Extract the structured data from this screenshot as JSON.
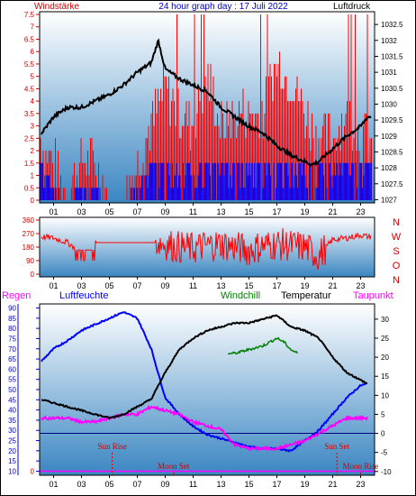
{
  "header": {
    "left_label": "Windstärke",
    "title": "24 hour graph day : 17 Juli 2022",
    "right_label": "Luftdruck"
  },
  "colors": {
    "border": "#000000",
    "panel_top": "#ffffff",
    "panel_bottom": "#3a86c2",
    "wind_red": "#ff0000",
    "wind_blue": "#0000ff",
    "pressure": "#000000",
    "humidity": "#0000ff",
    "temperature": "#000000",
    "windchill": "#008000",
    "dewpoint": "#ff00ff",
    "zero_line": "#ff00ff",
    "sun_text": "#cc0000",
    "temp_label": "#000000",
    "rain_label": "#ff00ff"
  },
  "chart_data": [
    {
      "type": "line",
      "name": "wind-pressure",
      "x_ticks": [
        "01",
        "03",
        "05",
        "07",
        "09",
        "11",
        "13",
        "15",
        "17",
        "19",
        "21",
        "23"
      ],
      "left_axis": {
        "label": "Windstärke",
        "ticks": [
          "0",
          "0.5",
          "1",
          "1.5",
          "2",
          "2.5",
          "3",
          "3.5",
          "4",
          "4.5",
          "5",
          "5.5",
          "6",
          "6.5",
          "7",
          "7.5"
        ],
        "range": [
          0,
          7.5
        ]
      },
      "right_axis": {
        "label": "Luftdruck",
        "ticks": [
          "1027",
          "1027.5",
          "1028",
          "1028.5",
          "1029",
          "1029.5",
          "1030",
          "1030.5",
          "1031",
          "1031.5",
          "1032",
          "1032.5"
        ],
        "range": [
          1026.9,
          1032.9
        ]
      },
      "series": [
        {
          "role": "pressure",
          "x": [
            0,
            1,
            2,
            3,
            4,
            5,
            6,
            7,
            8,
            8.5,
            9,
            10,
            11,
            12,
            13,
            14,
            15,
            16,
            17,
            18,
            19,
            19.5,
            20,
            21,
            22,
            23,
            23.5
          ],
          "y": [
            1029.0,
            1029.6,
            1029.9,
            1029.9,
            1030.1,
            1030.3,
            1030.6,
            1031.0,
            1031.3,
            1032.0,
            1031.1,
            1030.8,
            1030.6,
            1030.4,
            1029.9,
            1029.6,
            1029.3,
            1029.1,
            1028.7,
            1028.4,
            1028.2,
            1028.1,
            1028.2,
            1028.6,
            1029.0,
            1029.3,
            1029.6
          ]
        },
        {
          "role": "wind-gust",
          "x": [
            0,
            1,
            2,
            3,
            4,
            5,
            6,
            7,
            8,
            9,
            10,
            11,
            12,
            13,
            14,
            15,
            16,
            17,
            18,
            19,
            20,
            21,
            22,
            23
          ],
          "y": [
            2.5,
            1.5,
            0,
            1.5,
            1.5,
            0,
            0,
            1.5,
            3.0,
            4.5,
            3.5,
            3.0,
            5.0,
            3.0,
            3.5,
            3.5,
            3.5,
            5.5,
            5.0,
            3.5,
            2.5,
            2.5,
            3.5,
            2.5
          ]
        },
        {
          "role": "wind-avg",
          "x": [
            0,
            1,
            2,
            3,
            4,
            5,
            6,
            7,
            8,
            9,
            10,
            11,
            12,
            13,
            14,
            15,
            16,
            17,
            18,
            19,
            20,
            21,
            22,
            23
          ],
          "y": [
            1.5,
            0.5,
            0,
            0.5,
            0.5,
            0,
            0,
            0.5,
            1.5,
            1.5,
            1.5,
            1.5,
            1.5,
            1.5,
            1.5,
            1.5,
            1.5,
            1.5,
            1.5,
            1.5,
            1.5,
            1.5,
            1.5,
            1.5
          ]
        }
      ]
    },
    {
      "type": "line",
      "name": "wind-direction",
      "x_ticks": [
        "01",
        "03",
        "05",
        "07",
        "09",
        "11",
        "13",
        "15",
        "17",
        "19",
        "21",
        "23"
      ],
      "left_axis": {
        "ticks": [
          "0",
          "90",
          "180",
          "270",
          "360"
        ],
        "range": [
          0,
          360
        ]
      },
      "right_labels": [
        "N",
        "W",
        "S",
        "O",
        "N"
      ],
      "series": [
        {
          "role": "direction",
          "x": [
            0,
            1,
            2,
            3,
            4,
            5,
            6,
            7,
            8,
            9,
            10,
            11,
            12,
            13,
            14,
            15,
            16,
            17,
            18,
            19,
            20,
            21,
            22,
            23,
            23.5
          ],
          "y": [
            250,
            240,
            210,
            150,
            210,
            210,
            210,
            220,
            230,
            200,
            180,
            170,
            190,
            200,
            180,
            160,
            190,
            200,
            190,
            180,
            120,
            230,
            240,
            260,
            250
          ]
        }
      ]
    },
    {
      "type": "line",
      "name": "temperature-humidity",
      "labels": {
        "rain": "Regen",
        "humidity": "Luftfeuchte",
        "windchill": "Windchill",
        "temperature": "Temperatur",
        "dewpoint": "Taupunkt"
      },
      "x_ticks": [
        "01",
        "03",
        "05",
        "07",
        "09",
        "11",
        "13",
        "15",
        "17",
        "19",
        "21",
        "23"
      ],
      "left_axis": {
        "ticks": [
          "10",
          "15",
          "20",
          "25",
          "30",
          "35",
          "40",
          "45",
          "50",
          "55",
          "60",
          "65",
          "70",
          "75",
          "80",
          "85",
          "90"
        ],
        "range": [
          8,
          92
        ]
      },
      "right_axis": {
        "ticks": [
          "-10",
          "-5",
          "0",
          "5",
          "10",
          "15",
          "20",
          "25",
          "30"
        ],
        "range": [
          -11,
          34
        ]
      },
      "left_zero_label": "0",
      "series": [
        {
          "role": "humidity",
          "x": [
            0,
            1,
            2,
            3,
            4,
            5,
            6,
            7,
            8,
            9,
            10,
            11,
            12,
            13,
            14,
            15,
            16,
            17,
            18,
            19,
            20,
            21,
            22,
            23,
            23.5
          ],
          "y": [
            63,
            70,
            74,
            79,
            82,
            85,
            88,
            85,
            70,
            46,
            38,
            32,
            28,
            26,
            24,
            22,
            21,
            21,
            20,
            25,
            30,
            38,
            46,
            52,
            53
          ]
        },
        {
          "role": "temperature",
          "x": [
            0,
            1,
            2,
            3,
            4,
            5,
            6,
            7,
            8,
            9,
            10,
            11,
            12,
            13,
            14,
            15,
            16,
            17,
            18,
            19,
            20,
            21,
            22,
            23,
            23.5
          ],
          "y": [
            9,
            8,
            7,
            6,
            5,
            4,
            5,
            7,
            9,
            16,
            22,
            25,
            27,
            28,
            29,
            29,
            30,
            31,
            28,
            27,
            25,
            20,
            16,
            14,
            13
          ]
        },
        {
          "role": "windchill",
          "x": [
            13.5,
            14,
            15,
            16,
            17,
            17.5,
            18,
            18.5
          ],
          "y": [
            21,
            21,
            22,
            23,
            25,
            24,
            22,
            21
          ]
        },
        {
          "role": "dewpoint",
          "x": [
            0,
            1,
            2,
            3,
            4,
            5,
            6,
            7,
            8,
            9,
            10,
            11,
            12,
            13,
            14,
            15,
            16,
            17,
            18,
            19,
            20,
            21,
            22,
            23,
            23.5
          ],
          "y": [
            4,
            4,
            4,
            3,
            3,
            4,
            5,
            5,
            7,
            6,
            5,
            3,
            2,
            1,
            -3,
            -4,
            -4,
            -4,
            -3,
            -2,
            0,
            2,
            4,
            4,
            4
          ]
        },
        {
          "role": "zero-line",
          "x": [
            0,
            24
          ],
          "y": [
            10,
            10
          ]
        },
        {
          "role": "minus-line",
          "x": [
            0,
            24
          ],
          "y": [
            0,
            0
          ]
        }
      ],
      "annotations": [
        {
          "text": "Sun Rise",
          "x": 5.2
        },
        {
          "text": "Moon Set",
          "x": 9.6
        },
        {
          "text": "Sun Set",
          "x": 21.3
        },
        {
          "text": "Moon Rise",
          "x": 23.0
        }
      ]
    }
  ]
}
